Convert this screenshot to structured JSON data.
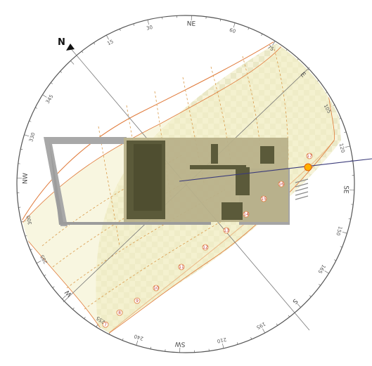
{
  "diagram": {
    "north_label": "N",
    "compass_directions": [
      {
        "label": "NE",
        "bearing": 45
      },
      {
        "label": "E",
        "bearing": 90
      },
      {
        "label": "SE",
        "bearing": 135
      },
      {
        "label": "S",
        "bearing": 180
      },
      {
        "label": "SW",
        "bearing": 225
      },
      {
        "label": "W",
        "bearing": 270
      },
      {
        "label": "NW",
        "bearing": 315
      }
    ],
    "bearing_labels": [
      {
        "label": "15",
        "bearing": 15
      },
      {
        "label": "30",
        "bearing": 30
      },
      {
        "label": "60",
        "bearing": 60
      },
      {
        "label": "75",
        "bearing": 75
      },
      {
        "label": "105",
        "bearing": 105
      },
      {
        "label": "120",
        "bearing": 120
      },
      {
        "label": "150",
        "bearing": 150
      },
      {
        "label": "165",
        "bearing": 165
      },
      {
        "label": "195",
        "bearing": 195
      },
      {
        "label": "210",
        "bearing": 210
      },
      {
        "label": "240",
        "bearing": 240
      },
      {
        "label": "255",
        "bearing": 255
      },
      {
        "label": "285",
        "bearing": 285
      },
      {
        "label": "300",
        "bearing": 300
      },
      {
        "label": "330",
        "bearing": 330
      },
      {
        "label": "345",
        "bearing": 345
      }
    ],
    "hour_markers": [
      "7",
      "8",
      "9",
      "10",
      "11",
      "12",
      "13",
      "14",
      "15",
      "16",
      "17"
    ],
    "colors": {
      "ring": "#555555",
      "band_fill": "#f3efc6",
      "band_edge": "#e07a3a",
      "hour_line": "#d99a4a",
      "building_light": "#b8b18a",
      "building_dark": "#5b5a3a",
      "sun_vector": "#3b3b7a",
      "sun": "#ffb000"
    }
  }
}
